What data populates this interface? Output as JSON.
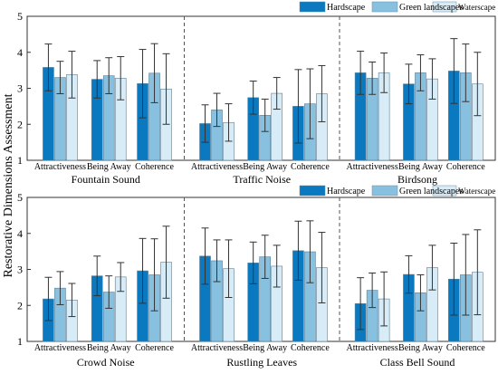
{
  "chart_data": {
    "type": "bar",
    "ylabel": "Restorative Dimensions Assessment",
    "ylim": [
      1,
      5
    ],
    "yticks": [
      1,
      2,
      3,
      4,
      5
    ],
    "categories": [
      "Attractiveness",
      "Being Away",
      "Coherence"
    ],
    "series_names": [
      "Hardscape",
      "Green landscapes",
      "Waterscape"
    ],
    "colors": {
      "Hardscape": "#0a79bf",
      "Green landscapes": "#88c0e0",
      "Waterscape": "#d8ecf7"
    },
    "panels": [
      {
        "title": "Fountain Sound",
        "values": [
          [
            3.58,
            3.3,
            3.38
          ],
          [
            3.25,
            3.35,
            3.28
          ],
          [
            3.13,
            3.42,
            2.98
          ]
        ],
        "errors": [
          [
            0.65,
            0.45,
            0.65
          ],
          [
            0.52,
            0.5,
            0.6
          ],
          [
            0.95,
            0.82,
            0.98
          ]
        ]
      },
      {
        "title": "Traffic Noise",
        "values": [
          [
            2.02,
            2.4,
            2.05
          ],
          [
            2.74,
            2.25,
            2.86
          ],
          [
            2.5,
            2.57,
            2.85
          ]
        ],
        "errors": [
          [
            0.52,
            0.46,
            0.52
          ],
          [
            0.46,
            0.45,
            0.44
          ],
          [
            1.02,
            0.97,
            0.78
          ]
        ]
      },
      {
        "title": "Birdsong",
        "values": [
          [
            3.43,
            3.28,
            3.43
          ],
          [
            3.12,
            3.43,
            3.26
          ],
          [
            3.48,
            3.43,
            3.12
          ]
        ],
        "errors": [
          [
            0.6,
            0.45,
            0.55
          ],
          [
            0.55,
            0.5,
            0.56
          ],
          [
            0.9,
            0.8,
            0.88
          ]
        ]
      },
      {
        "title": "Crowd Noise",
        "values": [
          [
            2.18,
            2.48,
            2.15
          ],
          [
            2.82,
            2.37,
            2.79
          ],
          [
            2.96,
            2.85,
            3.2
          ]
        ],
        "errors": [
          [
            0.6,
            0.46,
            0.46
          ],
          [
            0.55,
            0.45,
            0.4
          ],
          [
            0.9,
            1.0,
            1.0
          ]
        ]
      },
      {
        "title": "Rustling Leaves",
        "values": [
          [
            3.37,
            3.24,
            3.02
          ],
          [
            3.18,
            3.35,
            3.09
          ],
          [
            3.52,
            3.49,
            3.05
          ]
        ],
        "errors": [
          [
            0.78,
            0.58,
            0.8
          ],
          [
            0.58,
            0.6,
            0.58
          ],
          [
            0.82,
            0.86,
            0.98
          ]
        ]
      },
      {
        "title": "Class Bell Sound",
        "values": [
          [
            2.05,
            2.42,
            2.18
          ],
          [
            2.86,
            2.35,
            3.05
          ],
          [
            2.73,
            2.85,
            2.92
          ]
        ],
        "errors": [
          [
            0.72,
            0.48,
            0.75
          ],
          [
            0.52,
            0.5,
            0.62
          ],
          [
            1.0,
            1.12,
            1.18
          ]
        ]
      }
    ]
  }
}
